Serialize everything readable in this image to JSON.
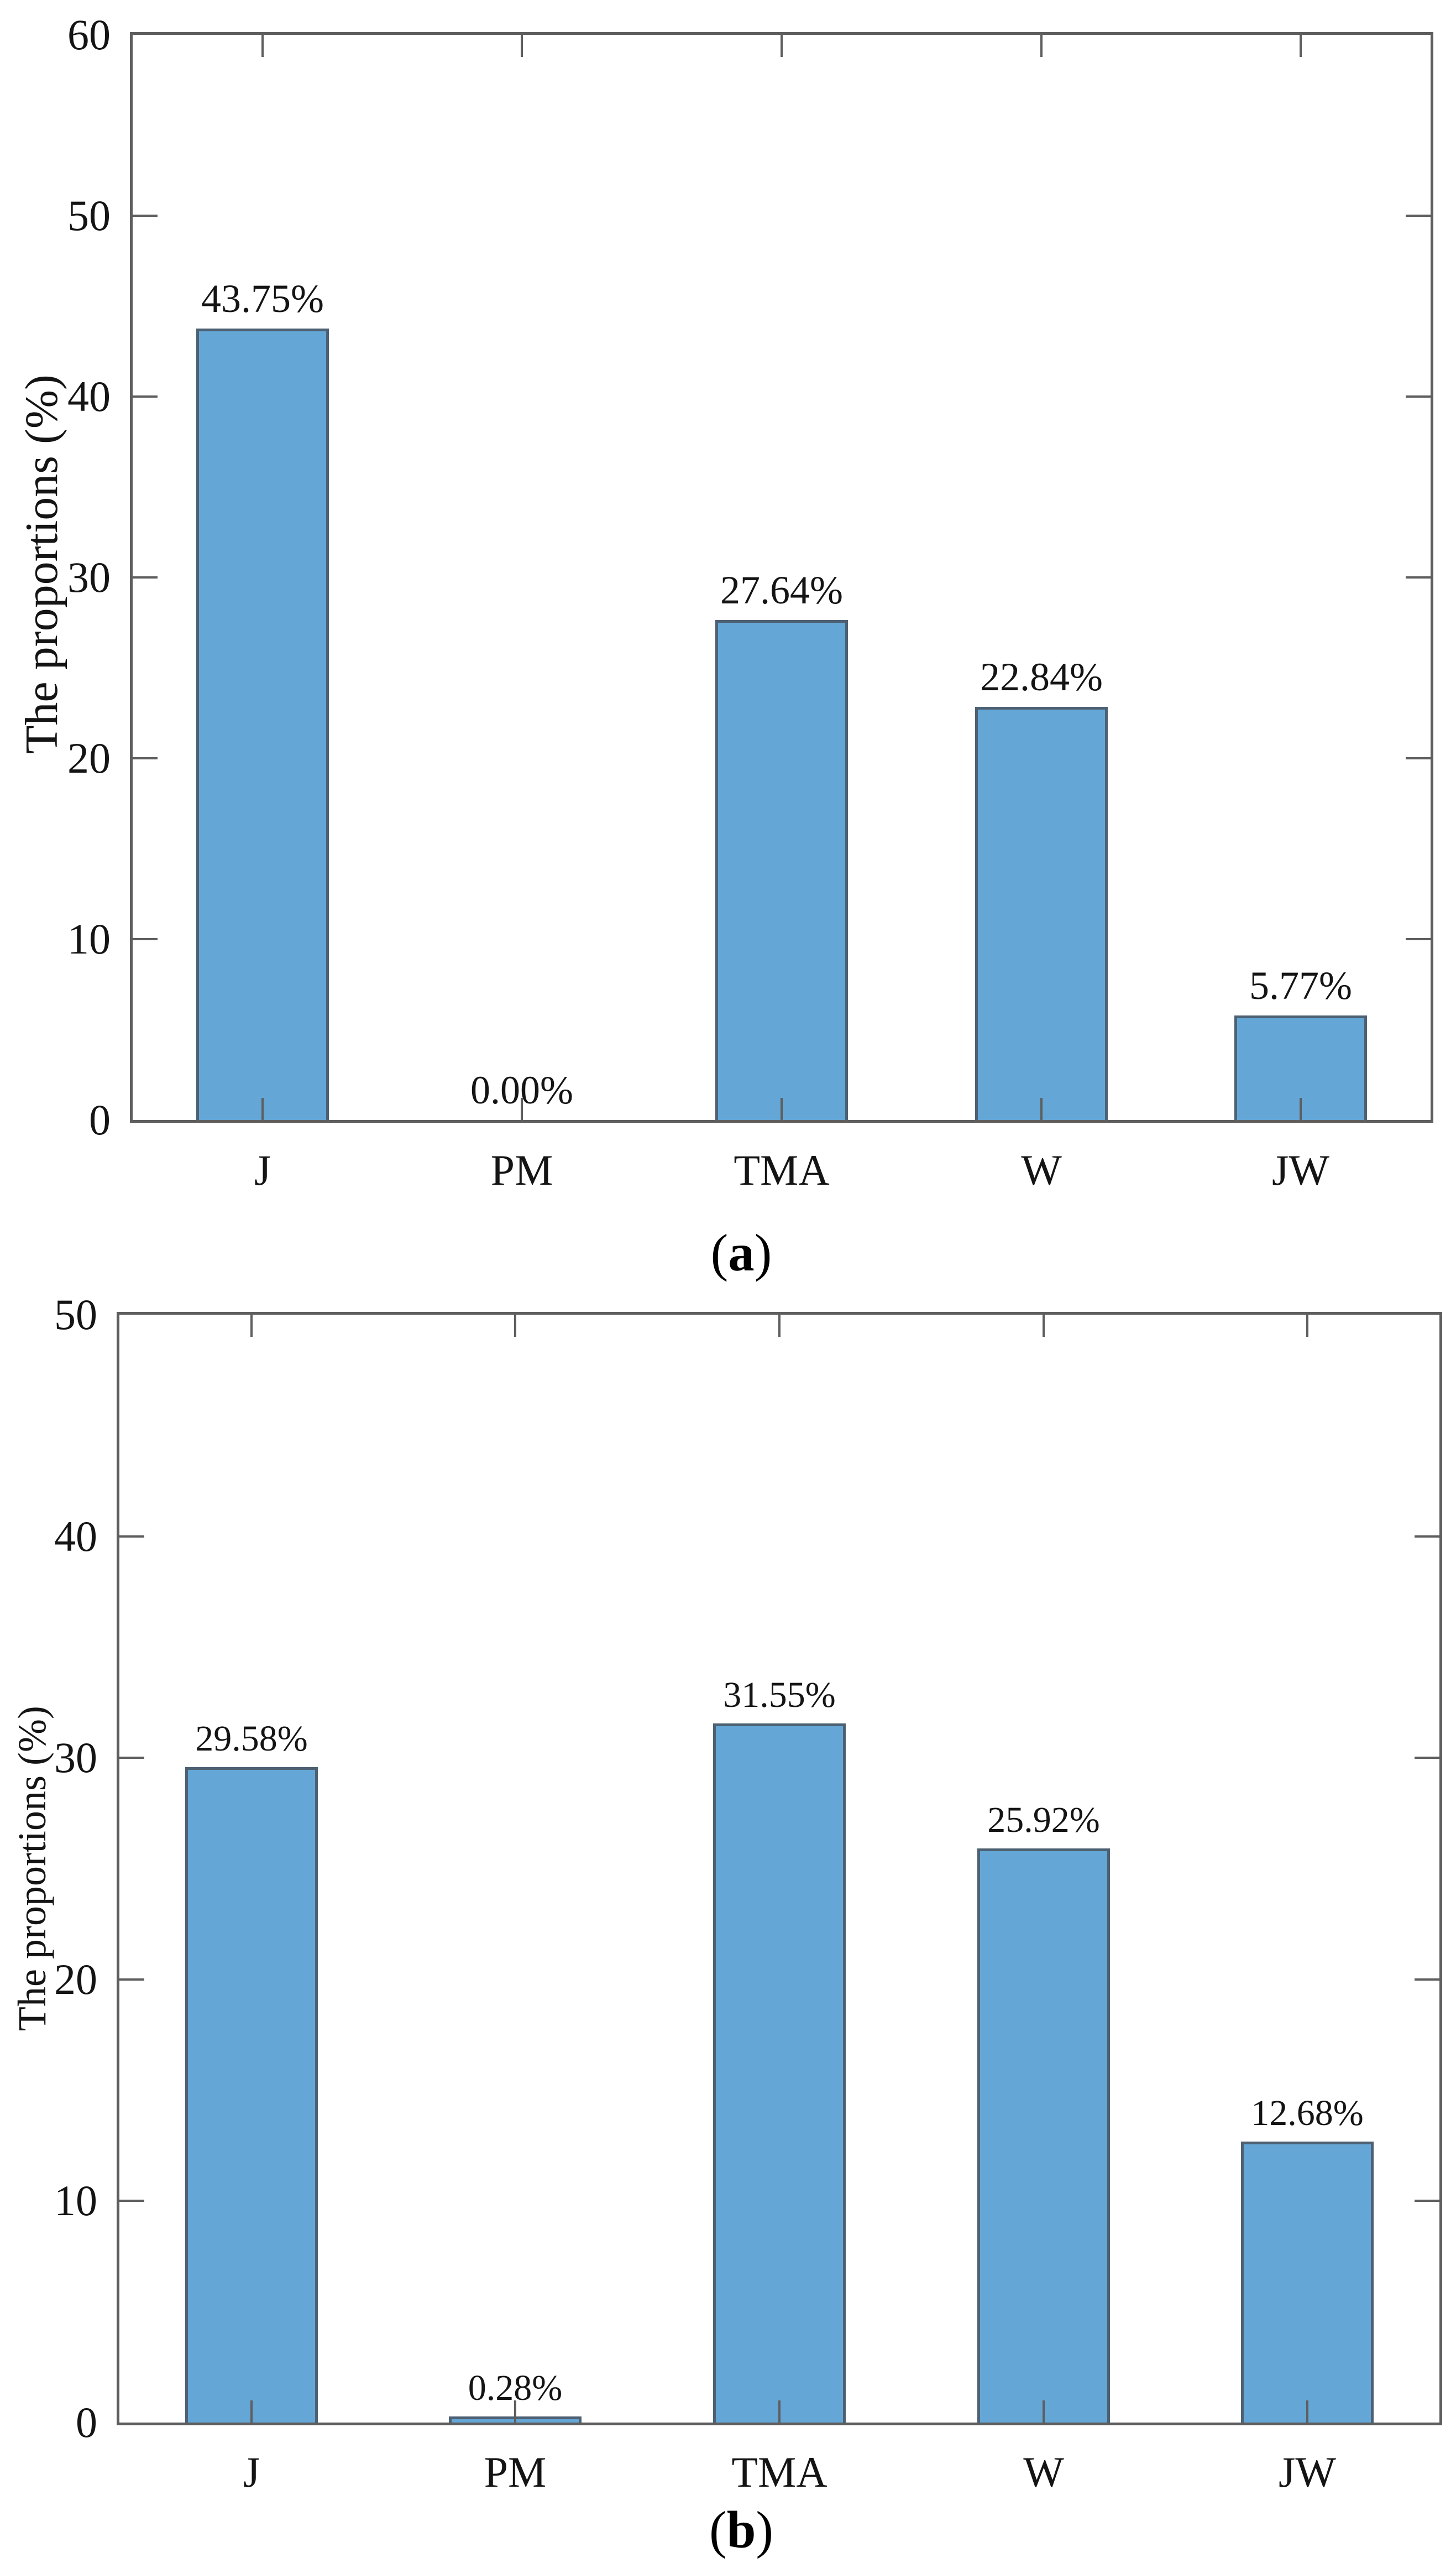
{
  "figure": {
    "panels": [
      {
        "caption_open": "(",
        "caption_letter": "a",
        "caption_close": ")",
        "y_axis_title": "The proportions (%)"
      },
      {
        "caption_open": "(",
        "caption_letter": "b",
        "caption_close": ")",
        "y_axis_title": "The proportions (%)"
      }
    ]
  },
  "chart_data": [
    {
      "type": "bar",
      "title": "",
      "categories": [
        "J",
        "PM",
        "TMA",
        "W",
        "JW"
      ],
      "values": [
        43.75,
        0.0,
        27.64,
        22.84,
        5.77
      ],
      "value_labels": [
        "43.75%",
        "0.00%",
        "27.64%",
        "22.84%",
        "5.77%"
      ],
      "xlabel": "",
      "ylabel": "The proportions (%)",
      "ylim": [
        0,
        60
      ],
      "yticks": [
        0,
        10,
        20,
        30,
        40,
        50,
        60
      ],
      "ytick_labels": [
        "0",
        "10",
        "20",
        "30",
        "40",
        "50",
        "60"
      ],
      "grid": false,
      "legend_position": "none",
      "bar_color": "#64a7d7",
      "bar_edge_color": "#4d6173"
    },
    {
      "type": "bar",
      "title": "",
      "categories": [
        "J",
        "PM",
        "TMA",
        "W",
        "JW"
      ],
      "values": [
        29.58,
        0.28,
        31.55,
        25.92,
        12.68
      ],
      "value_labels": [
        "29.58%",
        "0.28%",
        "31.55%",
        "25.92%",
        "12.68%"
      ],
      "xlabel": "",
      "ylabel": "The proportions (%)",
      "ylim": [
        0,
        50
      ],
      "yticks": [
        0,
        10,
        20,
        30,
        40,
        50
      ],
      "ytick_labels": [
        "0",
        "10",
        "20",
        "30",
        "40",
        "50"
      ],
      "grid": false,
      "legend_position": "none",
      "bar_color": "#64a7d7",
      "bar_edge_color": "#4d6173"
    }
  ],
  "colors": {
    "bar_fill": "#64a7d7",
    "bar_edge": "#4d6173",
    "axis_line": "#5e5e5e",
    "text": "#141414",
    "background": "#ffffff"
  }
}
